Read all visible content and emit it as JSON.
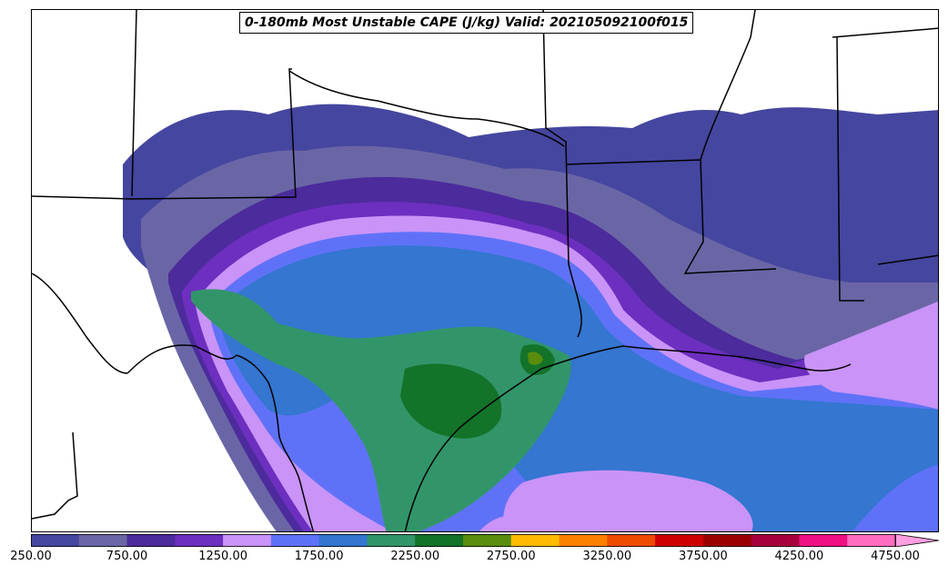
{
  "title": "0-180mb Most Unstable CAPE (J/kg) Valid: 202105092100f015",
  "colorbar": {
    "levels": [
      "250.00",
      "500.00",
      "750.00",
      "1000.00",
      "1250.00",
      "1500.00",
      "1750.00",
      "2000.00",
      "2250.00",
      "2500.00",
      "2750.00",
      "3000.00",
      "3250.00",
      "3500.00",
      "3750.00",
      "4000.00",
      "4250.00",
      "4500.00",
      "4750.00"
    ],
    "tick_labels": [
      "250.00",
      "750.00",
      "1250.00",
      "1750.00",
      "2250.00",
      "2750.00",
      "3250.00",
      "3750.00",
      "4250.00",
      "4750.00"
    ],
    "colors": [
      "#45469f",
      "#6a66a6",
      "#4c2b9c",
      "#6d2fbf",
      "#c993f8",
      "#5f72f7",
      "#3476d0",
      "#32956a",
      "#137329",
      "#5a8d0d",
      "#ffbb00",
      "#fb8000",
      "#ee4b00",
      "#cf0000",
      "#9b0000",
      "#a8003e",
      "#ee1083",
      "#ff6cc0"
    ],
    "extend": "max"
  }
}
